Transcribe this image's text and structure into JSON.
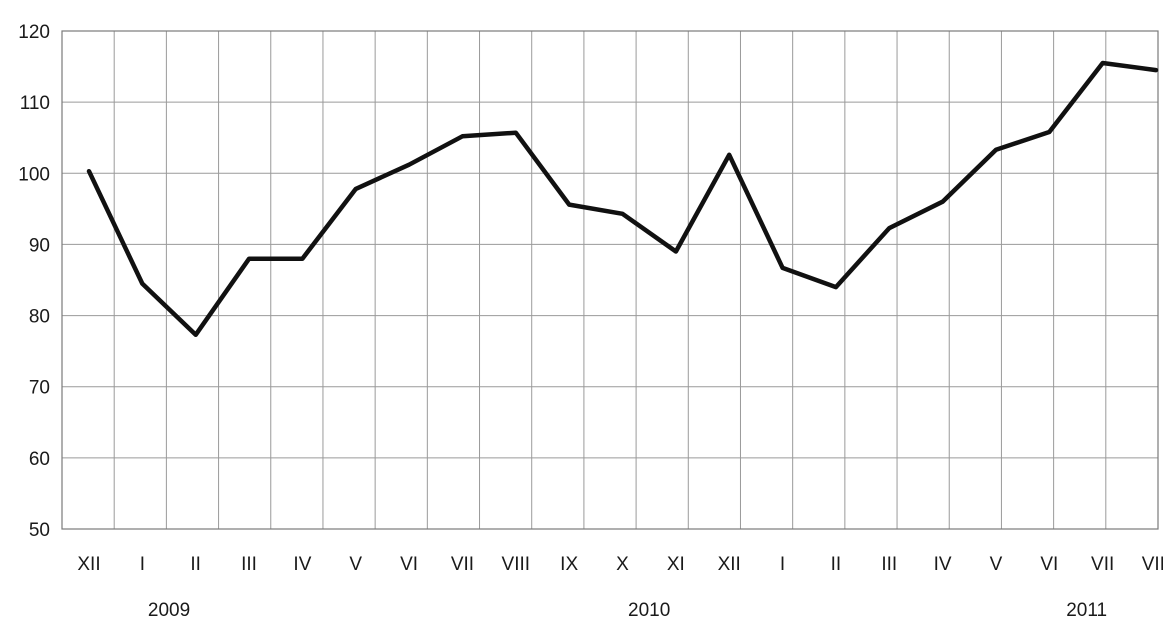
{
  "chart_data": {
    "type": "line",
    "categories": [
      "XII",
      "I",
      "II",
      "III",
      "IV",
      "V",
      "VI",
      "VII",
      "VIII",
      "IX",
      "X",
      "XI",
      "XII",
      "I",
      "II",
      "III",
      "IV",
      "V",
      "VI",
      "VII",
      "VIII"
    ],
    "series": [
      {
        "values": [
          100.3,
          84.5,
          77.3,
          88.0,
          88.0,
          97.8,
          101.2,
          105.2,
          105.7,
          95.6,
          94.3,
          89.0,
          102.6,
          86.7,
          84.0,
          92.3,
          96.0,
          103.3,
          105.8,
          115.5,
          114.5
        ],
        "color": "#111111"
      }
    ],
    "year_labels": [
      {
        "label": "2009",
        "category_index": 1.5
      },
      {
        "label": "2010",
        "category_index": 10.5
      },
      {
        "label": "2011",
        "category_index": 18.7
      }
    ],
    "ylim": [
      50,
      120
    ],
    "yticks": [
      "50",
      "60",
      "70",
      "80",
      "90",
      "100",
      "110",
      "120"
    ],
    "grid": true,
    "title": "",
    "xlabel": "",
    "ylabel": ""
  }
}
